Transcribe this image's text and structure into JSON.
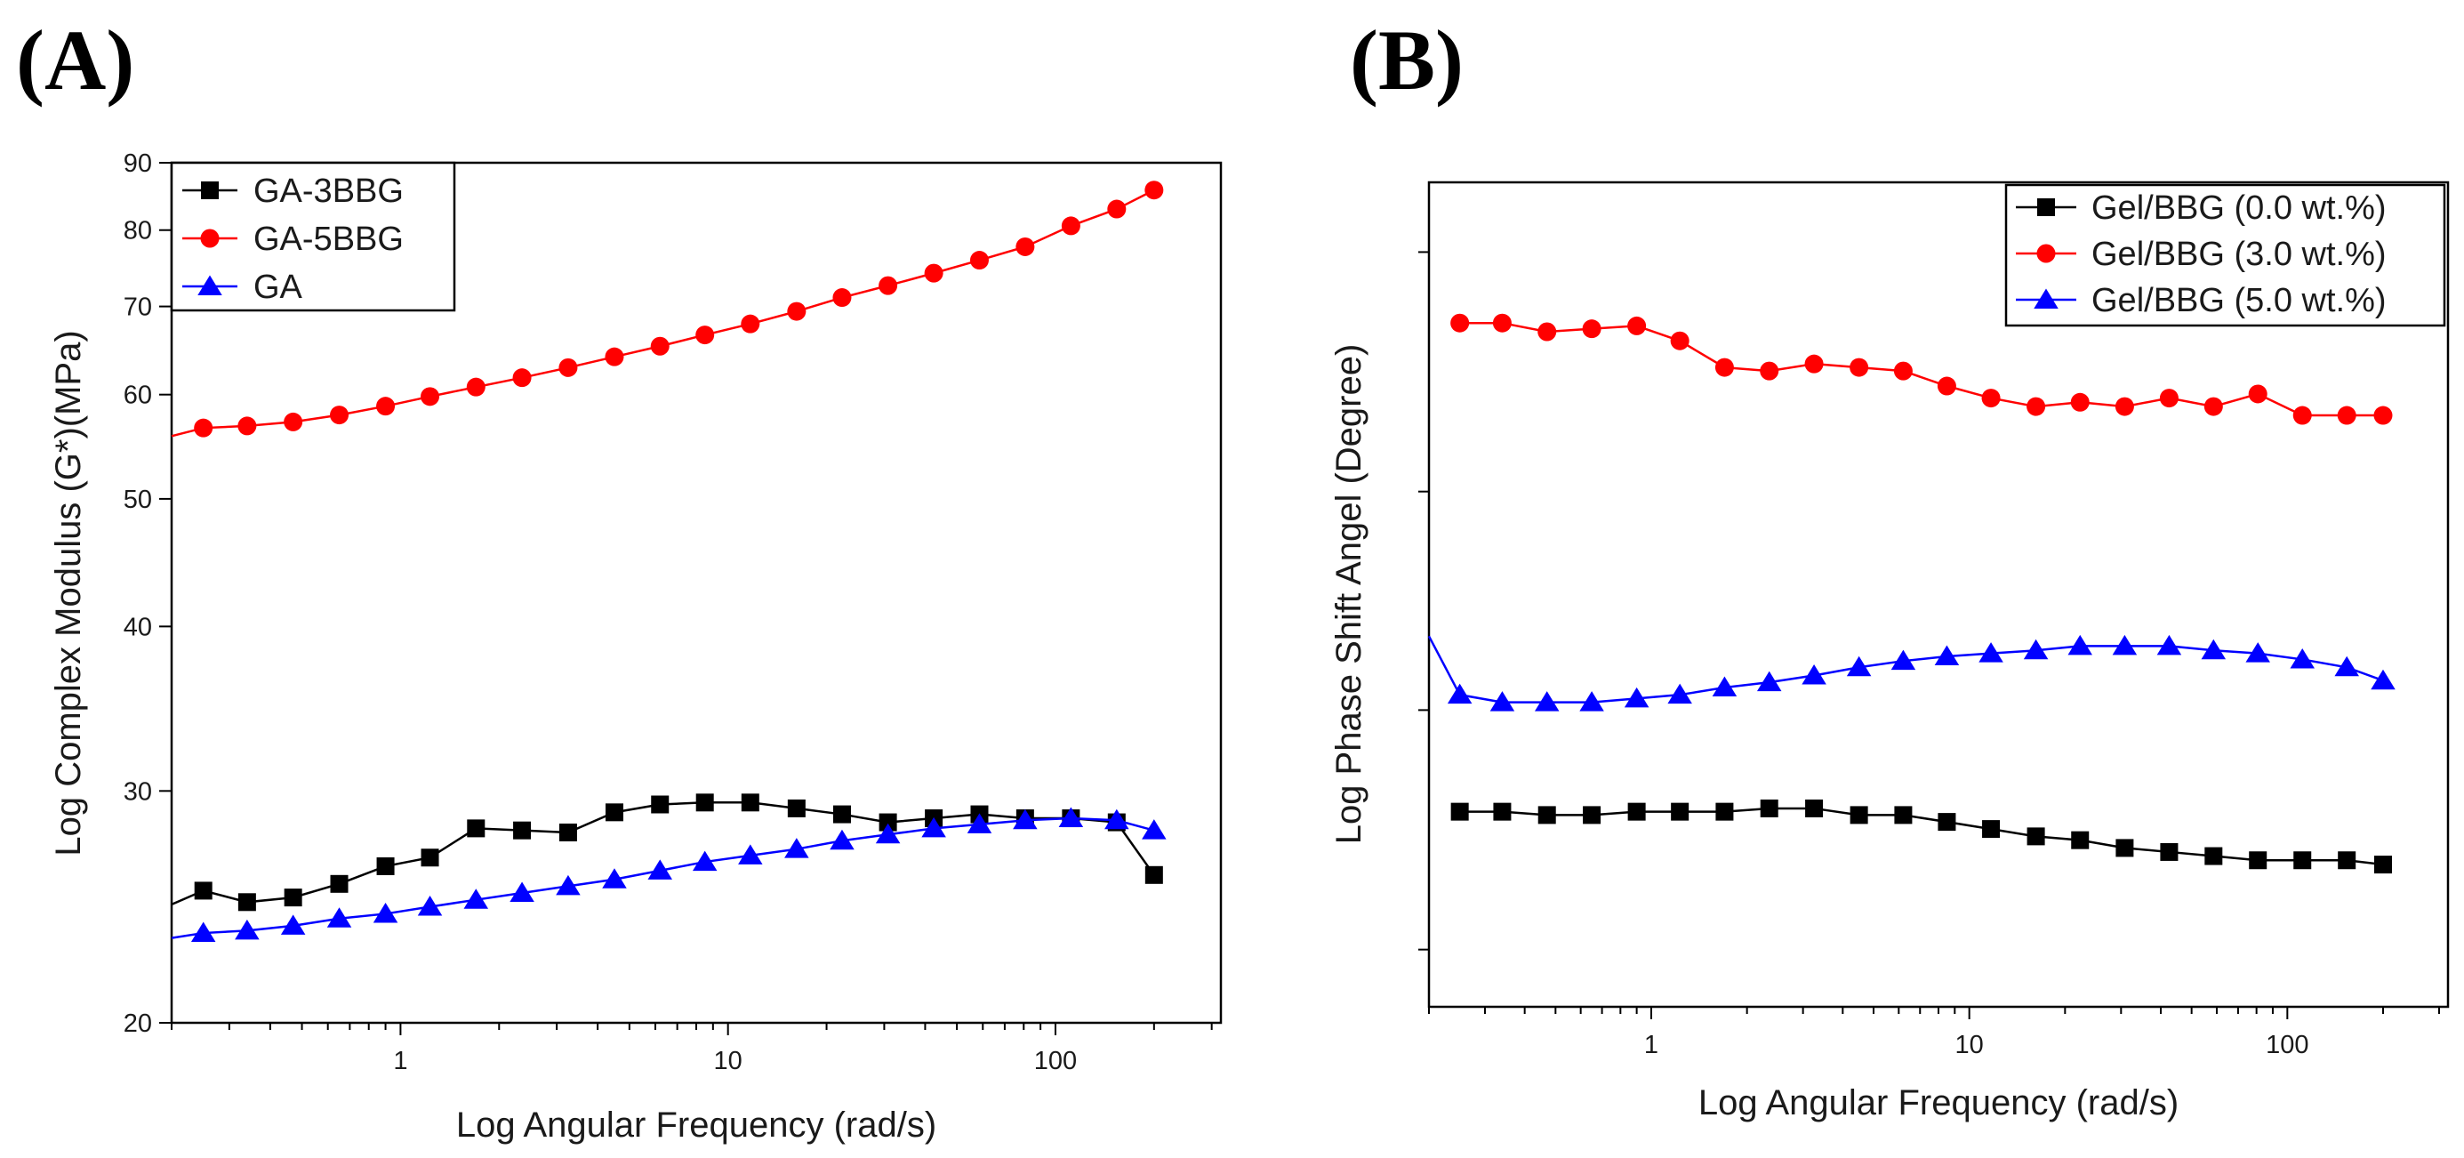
{
  "panels": [
    {
      "label": "(A)"
    },
    {
      "label": "(B)"
    }
  ],
  "chart_data": [
    {
      "type": "line",
      "xlabel": "Log Angular Frequency (rad/s)",
      "ylabel": "Log Complex Modulus (G*)(MPa)",
      "x_scale": "log",
      "y_scale": "log",
      "xlim": [
        0.2,
        320
      ],
      "ylim": [
        20,
        90
      ],
      "x_ticks": [
        {
          "v": 1,
          "label": "1"
        },
        {
          "v": 10,
          "label": "10"
        },
        {
          "v": 100,
          "label": "100"
        }
      ],
      "y_ticks": [
        {
          "v": 20,
          "label": "20"
        },
        {
          "v": 30,
          "label": "30"
        },
        {
          "v": 40,
          "label": "40"
        },
        {
          "v": 50,
          "label": "50"
        },
        {
          "v": 60,
          "label": "60"
        },
        {
          "v": 70,
          "label": "70"
        },
        {
          "v": 80,
          "label": "80"
        },
        {
          "v": 90,
          "label": "90"
        }
      ],
      "legend_position": "top-left",
      "x": [
        0.25,
        0.34,
        0.47,
        0.65,
        0.9,
        1.23,
        1.7,
        2.35,
        3.25,
        4.5,
        6.2,
        8.5,
        11.7,
        16.2,
        22.3,
        30.8,
        42.5,
        58.6,
        80.8,
        111.5,
        153.8,
        200
      ],
      "series": [
        {
          "name": "GA-3BBG",
          "color": "#000000",
          "marker": "square",
          "start": [
            0.2,
            24.6
          ],
          "values": [
            25.2,
            24.7,
            24.9,
            25.5,
            26.3,
            26.7,
            28.1,
            28.0,
            27.9,
            28.9,
            29.3,
            29.4,
            29.4,
            29.1,
            28.8,
            28.4,
            28.6,
            28.8,
            28.6,
            28.6,
            28.4,
            25.9
          ]
        },
        {
          "name": "GA-5BBG",
          "color": "#ff0000",
          "marker": "circle",
          "start": [
            0.2,
            55.8
          ],
          "values": [
            56.6,
            56.8,
            57.2,
            57.9,
            58.8,
            59.8,
            60.8,
            61.8,
            62.9,
            64.1,
            65.3,
            66.6,
            67.9,
            69.4,
            71.1,
            72.6,
            74.2,
            75.9,
            77.7,
            80.6,
            83.0,
            85.8
          ]
        },
        {
          "name": "GA",
          "color": "#0000ff",
          "marker": "triangle",
          "start": [
            0.2,
            23.2
          ],
          "values": [
            23.4,
            23.5,
            23.7,
            24.0,
            24.2,
            24.5,
            24.8,
            25.1,
            25.4,
            25.7,
            26.1,
            26.5,
            26.8,
            27.1,
            27.5,
            27.8,
            28.1,
            28.3,
            28.5,
            28.6,
            28.5,
            28.0
          ]
        }
      ]
    },
    {
      "type": "line",
      "xlabel": "Log Angular Frequency (rad/s)",
      "ylabel": "Log Phase Shift Angel (Degree)",
      "x_scale": "log",
      "y_scale": "log",
      "xlim": [
        0.2,
        320
      ],
      "ylim": [
        0.225,
        14.2
      ],
      "x_ticks": [
        {
          "v": 1,
          "label": "1"
        },
        {
          "v": 10,
          "label": "10"
        },
        {
          "v": 100,
          "label": "100"
        }
      ],
      "y_tick_values": [
        0.3,
        1,
        3,
        10
      ],
      "y_tick_labels": "none",
      "legend_position": "top-right",
      "x": [
        0.25,
        0.34,
        0.47,
        0.65,
        0.9,
        1.23,
        1.7,
        2.35,
        3.25,
        4.5,
        6.2,
        8.5,
        11.7,
        16.2,
        22.3,
        30.8,
        42.5,
        58.6,
        80.8,
        111.5,
        153.8,
        200
      ],
      "series": [
        {
          "name": "Gel/BBG (0.0 wt.%)",
          "color": "#000000",
          "marker": "square",
          "start": null,
          "values": [
            0.6,
            0.6,
            0.59,
            0.59,
            0.6,
            0.6,
            0.6,
            0.61,
            0.61,
            0.59,
            0.59,
            0.57,
            0.55,
            0.53,
            0.52,
            0.5,
            0.49,
            0.48,
            0.47,
            0.47,
            0.47,
            0.46
          ]
        },
        {
          "name": "Gel/BBG (3.0 wt.%)",
          "color": "#ff0000",
          "marker": "circle",
          "start": null,
          "values": [
            7.0,
            7.0,
            6.7,
            6.8,
            6.9,
            6.4,
            5.6,
            5.5,
            5.7,
            5.6,
            5.5,
            5.1,
            4.8,
            4.6,
            4.7,
            4.6,
            4.8,
            4.6,
            4.9,
            4.4,
            4.4,
            4.4
          ]
        },
        {
          "name": "Gel/BBG (5.0 wt.%)",
          "color": "#0000ff",
          "marker": "triangle",
          "start": [
            0.2,
            1.45
          ],
          "values": [
            1.08,
            1.04,
            1.04,
            1.04,
            1.06,
            1.08,
            1.12,
            1.15,
            1.19,
            1.24,
            1.28,
            1.31,
            1.33,
            1.35,
            1.38,
            1.38,
            1.38,
            1.35,
            1.33,
            1.29,
            1.24,
            1.16
          ]
        }
      ]
    }
  ]
}
